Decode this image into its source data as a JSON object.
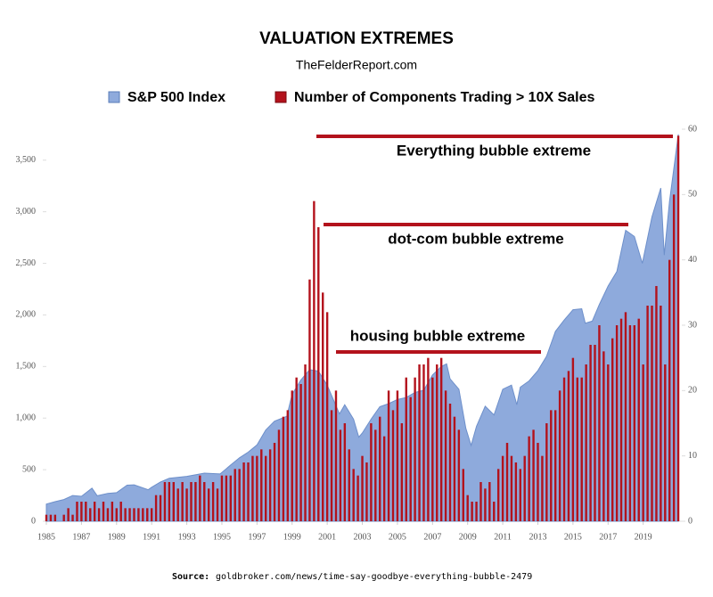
{
  "chart_data": {
    "type": "combo",
    "title": "VALUATION EXTREMES",
    "subtitle": "TheFelderReport.com",
    "xlim": [
      1985,
      2021.2
    ],
    "xticks": [
      1985,
      1987,
      1989,
      1991,
      1993,
      1995,
      1997,
      1999,
      2001,
      2003,
      2005,
      2007,
      2009,
      2011,
      2013,
      2015,
      2017,
      2019
    ],
    "ylim": [
      0,
      3800
    ],
    "yticks": [
      0,
      500,
      {
        "value": 1000,
        "label": "1,000"
      },
      {
        "value": 1500,
        "label": "1,500"
      },
      {
        "value": 2000,
        "label": "2,000"
      },
      {
        "value": 2500,
        "label": "2,500"
      },
      {
        "value": 3000,
        "label": "3,000"
      },
      {
        "value": 3500,
        "label": "3,500"
      }
    ],
    "y2lim": [
      0,
      60
    ],
    "y2ticks": [
      0,
      10,
      20,
      30,
      40,
      50,
      60
    ],
    "series": [
      {
        "name": "S&P 500 Index",
        "type": "area",
        "color": "#8eaadc",
        "x": [
          1985,
          1985.5,
          1986,
          1986.5,
          1987,
          1987.6,
          1987.9,
          1988.5,
          1989,
          1989.6,
          1990,
          1990.8,
          1991,
          1991.5,
          1992,
          1993,
          1994,
          1994.9,
          1995.5,
          1996,
          1996.5,
          1997,
          1997.5,
          1998,
          1998.7,
          1999,
          1999.5,
          2000,
          2000.5,
          2001,
          2001.7,
          2002,
          2002.5,
          2002.8,
          2003,
          2003.5,
          2004,
          2004.5,
          2005,
          2005.5,
          2006,
          2006.5,
          2007,
          2007.5,
          2007.8,
          2008,
          2008.5,
          2008.9,
          2009.2,
          2009.5,
          2010,
          2010.5,
          2011,
          2011.5,
          2011.8,
          2012,
          2012.5,
          2013,
          2013.5,
          2014,
          2014.5,
          2015,
          2015.5,
          2015.7,
          2016.1,
          2016.5,
          2017,
          2017.5,
          2018,
          2018.5,
          2018.95,
          2019.5,
          2020,
          2020.2,
          2020.5,
          2021
        ],
        "values": [
          167,
          190,
          211,
          250,
          242,
          320,
          247,
          270,
          277,
          350,
          353,
          306,
          330,
          380,
          417,
          435,
          466,
          459,
          545,
          615,
          670,
          740,
          885,
          970,
          1017,
          1229,
          1370,
          1469,
          1455,
          1320,
          1040,
          1130,
          990,
          815,
          855,
          990,
          1111,
          1140,
          1181,
          1200,
          1248,
          1270,
          1418,
          1500,
          1526,
          1380,
          1280,
          900,
          735,
          920,
          1115,
          1030,
          1280,
          1320,
          1130,
          1300,
          1360,
          1460,
          1600,
          1840,
          1950,
          2050,
          2060,
          1920,
          1940,
          2100,
          2280,
          2420,
          2820,
          2760,
          2500,
          2950,
          3230,
          2580,
          3100,
          3750
        ]
      },
      {
        "name": "Number of Components Trading > 10X Sales",
        "type": "bar",
        "axis": "y2",
        "color": "#b3121c",
        "x": [
          1985,
          1985.25,
          1985.5,
          1985.75,
          1986,
          1986.25,
          1986.5,
          1986.75,
          1987,
          1987.25,
          1987.5,
          1987.75,
          1988,
          1988.25,
          1988.5,
          1988.75,
          1989,
          1989.25,
          1989.5,
          1989.75,
          1990,
          1990.25,
          1990.5,
          1990.75,
          1991,
          1991.25,
          1991.5,
          1991.75,
          1992,
          1992.25,
          1992.5,
          1992.75,
          1993,
          1993.25,
          1993.5,
          1993.75,
          1994,
          1994.25,
          1994.5,
          1994.75,
          1995,
          1995.25,
          1995.5,
          1995.75,
          1996,
          1996.25,
          1996.5,
          1996.75,
          1997,
          1997.25,
          1997.5,
          1997.75,
          1998,
          1998.25,
          1998.5,
          1998.75,
          1999,
          1999.25,
          1999.5,
          1999.75,
          2000,
          2000.25,
          2000.5,
          2000.75,
          2001,
          2001.25,
          2001.5,
          2001.75,
          2002,
          2002.25,
          2002.5,
          2002.75,
          2003,
          2003.25,
          2003.5,
          2003.75,
          2004,
          2004.25,
          2004.5,
          2004.75,
          2005,
          2005.25,
          2005.5,
          2005.75,
          2006,
          2006.25,
          2006.5,
          2006.75,
          2007,
          2007.25,
          2007.5,
          2007.75,
          2008,
          2008.25,
          2008.5,
          2008.75,
          2009,
          2009.25,
          2009.5,
          2009.75,
          2010,
          2010.25,
          2010.5,
          2010.75,
          2011,
          2011.25,
          2011.5,
          2011.75,
          2012,
          2012.25,
          2012.5,
          2012.75,
          2013,
          2013.25,
          2013.5,
          2013.75,
          2014,
          2014.25,
          2014.5,
          2014.75,
          2015,
          2015.25,
          2015.5,
          2015.75,
          2016,
          2016.25,
          2016.5,
          2016.75,
          2017,
          2017.25,
          2017.5,
          2017.75,
          2018,
          2018.25,
          2018.5,
          2018.75,
          2019,
          2019.25,
          2019.5,
          2019.75,
          2020,
          2020.25,
          2020.5,
          2020.75,
          2021
        ],
        "values": [
          1,
          1,
          1,
          0,
          1,
          2,
          1,
          3,
          3,
          3,
          2,
          3,
          2,
          3,
          2,
          3,
          2,
          3,
          2,
          2,
          2,
          2,
          2,
          2,
          2,
          4,
          4,
          6,
          6,
          6,
          5,
          6,
          5,
          6,
          6,
          7,
          6,
          5,
          6,
          5,
          7,
          7,
          7,
          8,
          8,
          9,
          9,
          10,
          10,
          11,
          10,
          11,
          12,
          14,
          16,
          17,
          20,
          22,
          21,
          24,
          37,
          49,
          45,
          35,
          32,
          17,
          20,
          14,
          15,
          11,
          8,
          7,
          10,
          9,
          15,
          14,
          16,
          13,
          20,
          17,
          20,
          15,
          22,
          19,
          22,
          24,
          24,
          25,
          22,
          24,
          25,
          20,
          18,
          16,
          14,
          8,
          4,
          3,
          3,
          6,
          5,
          6,
          3,
          8,
          10,
          12,
          10,
          9,
          8,
          10,
          13,
          14,
          12,
          10,
          15,
          17,
          17,
          20,
          22,
          23,
          25,
          22,
          22,
          24,
          27,
          27,
          30,
          26,
          24,
          28,
          30,
          31,
          32,
          30,
          30,
          31,
          24,
          33,
          33,
          36,
          33,
          24,
          40,
          50,
          59
        ]
      }
    ],
    "annotations": [
      "Everything bubble extreme",
      "dot-com bubble extreme",
      "housing bubble extreme"
    ],
    "source_label": "Source:",
    "source": "goldbroker.com/news/time-say-goodbye-everything-bubble-2479"
  }
}
